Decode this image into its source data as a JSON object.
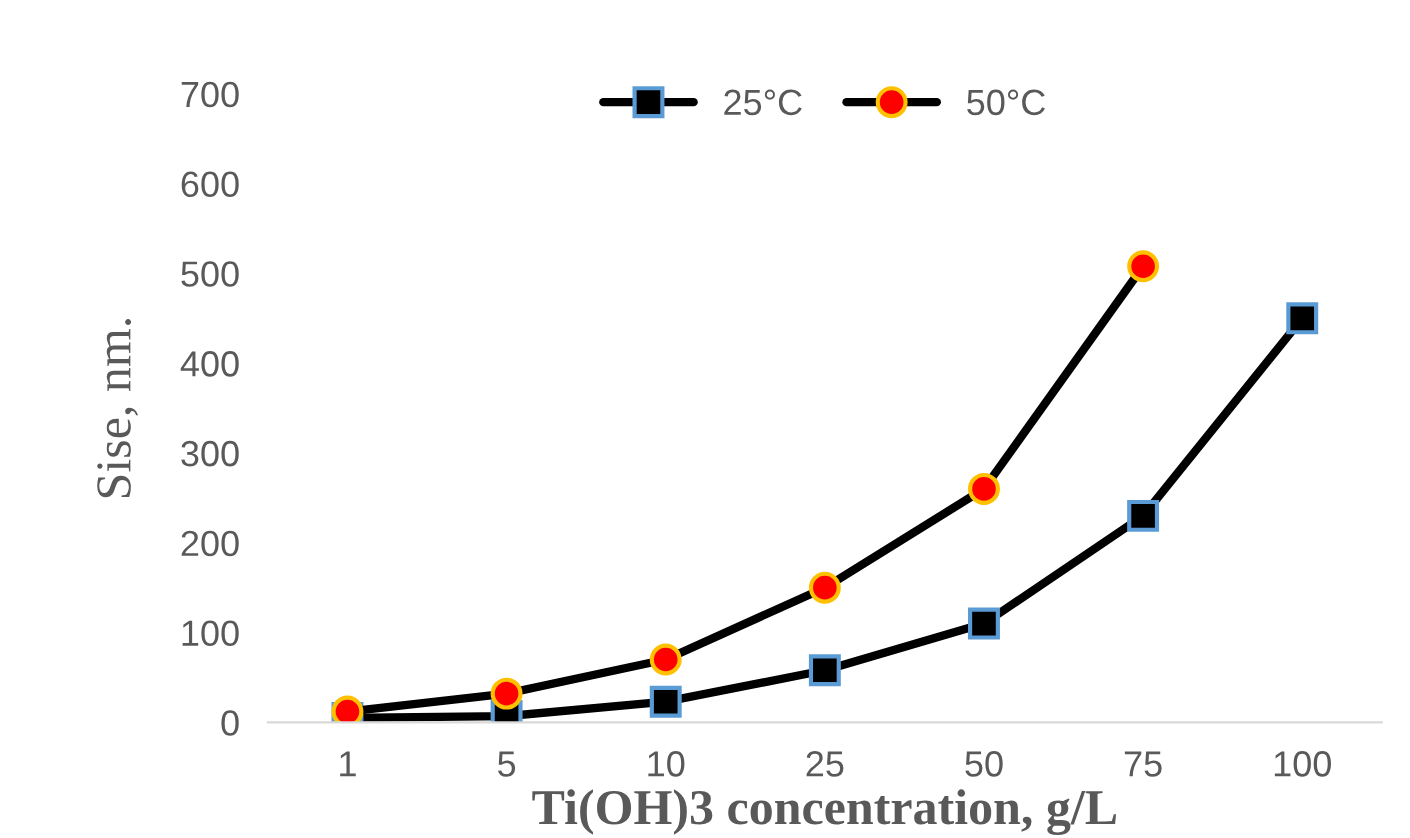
{
  "chart_data": {
    "type": "line",
    "xlabel": "Ti(OH)3 concentration, g/L",
    "ylabel": "Sise, nm.",
    "categories": [
      "1",
      "5",
      "10",
      "25",
      "50",
      "75",
      "100"
    ],
    "series": [
      {
        "name": "25°C",
        "color": "#000000",
        "marker": "square",
        "values": [
          5,
          7,
          23,
          58,
          110,
          230,
          450
        ]
      },
      {
        "name": "50°C",
        "color": "#000000",
        "marker": "circle",
        "values": [
          12,
          32,
          70,
          150,
          260,
          508,
          null
        ]
      }
    ],
    "ylim": [
      0,
      700
    ],
    "yticks": [
      0,
      100,
      200,
      300,
      400,
      500,
      600,
      700
    ],
    "grid": false,
    "legend": "top",
    "line_style": "solid"
  }
}
